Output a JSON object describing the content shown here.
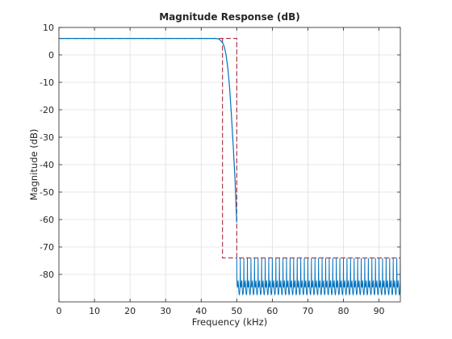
{
  "chart_data": {
    "type": "line",
    "title": "Magnitude Response (dB)",
    "xlabel": "Frequency (kHz)",
    "ylabel": "Magnitude (dB)",
    "xlim": [
      0,
      96
    ],
    "ylim": [
      -90,
      10
    ],
    "x_ticks": [
      0,
      10,
      20,
      30,
      40,
      50,
      60,
      70,
      80,
      90
    ],
    "y_ticks": [
      10,
      0,
      -10,
      -20,
      -30,
      -40,
      -50,
      -60,
      -70,
      -80
    ],
    "grid": true,
    "colors": {
      "response": "#0072BD",
      "mask": "#A2142F",
      "axes": "#262626",
      "grid": "#dfdfdf"
    },
    "series": [
      {
        "style": "solid",
        "points": [
          [
            0,
            6
          ],
          [
            44,
            6
          ],
          [
            45,
            5.8
          ],
          [
            46,
            4.5
          ],
          [
            46.5,
            3
          ],
          [
            47,
            0
          ],
          [
            47.5,
            -5
          ],
          [
            48,
            -12
          ],
          [
            48.5,
            -22
          ],
          [
            49,
            -33
          ],
          [
            49.5,
            -45
          ],
          [
            49.8,
            -55
          ],
          [
            50,
            -61
          ]
        ],
        "stopband": {
          "x_start": 50,
          "x_end": 96,
          "max_db": -74,
          "min_db": -90,
          "cycles": 46
        }
      },
      {
        "style": "dashed",
        "points": [
          [
            0,
            6
          ],
          [
            50,
            6
          ],
          [
            50,
            -74
          ],
          [
            96,
            -74
          ]
        ]
      },
      {
        "style": "dashed",
        "points": [
          [
            46,
            6
          ],
          [
            46,
            -74
          ],
          [
            50,
            -74
          ]
        ]
      }
    ]
  }
}
